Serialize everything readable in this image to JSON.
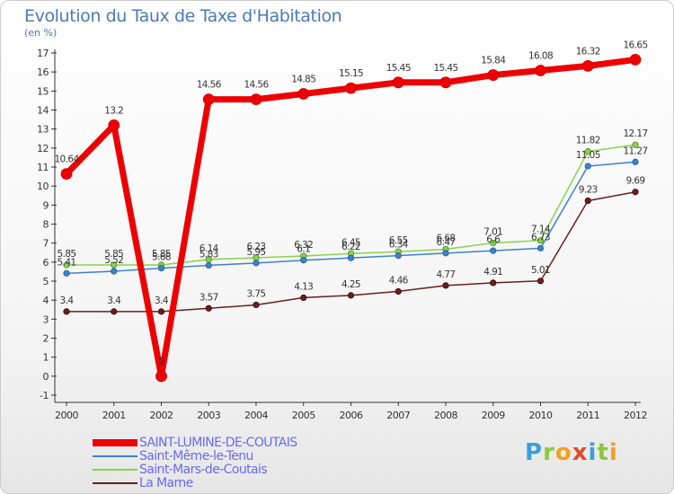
{
  "page": {
    "title": "Evolution du Taux de Taxe d'Habitation",
    "subtitle": "(en %)"
  },
  "chart_data": {
    "type": "line",
    "title": "Evolution du Taux de Taxe d'Habitation",
    "subtitle": "(en %)",
    "xlabel": "",
    "ylabel": "",
    "ylim": [
      -1,
      17
    ],
    "grid": false,
    "legend_placement": "bottom-left",
    "x": [
      "2000",
      "2001",
      "2002",
      "2003",
      "2004",
      "2005",
      "2006",
      "2007",
      "2008",
      "2009",
      "2010",
      "2011",
      "2012"
    ],
    "y_ticks": [
      "-1",
      "0",
      "1",
      "2",
      "3",
      "4",
      "5",
      "6",
      "7",
      "8",
      "9",
      "10",
      "11",
      "12",
      "13",
      "14",
      "15",
      "16",
      "17"
    ],
    "series": [
      {
        "name": "SAINT-LUMINE-DE-COUTAIS",
        "color": "#ee0000",
        "values": [
          10.64,
          13.2,
          0,
          14.56,
          14.56,
          14.85,
          15.15,
          15.45,
          15.45,
          15.84,
          16.08,
          16.32,
          16.65
        ],
        "labels": [
          "10.64",
          "13.2",
          "0",
          "14.56",
          "14.56",
          "14.85",
          "15.15",
          "15.45",
          "15.45",
          "15.84",
          "16.08",
          "16.32",
          "16.65"
        ]
      },
      {
        "name": "Saint-Même-le-Tenu",
        "color": "#3a82d0",
        "values": [
          5.41,
          5.52,
          5.68,
          5.83,
          5.95,
          6.1,
          6.22,
          6.34,
          6.47,
          6.6,
          6.73,
          11.05,
          11.27
        ],
        "labels": [
          "5.41",
          "5.52",
          "5.68",
          "5.83",
          "5.95",
          "6.1",
          "6.22",
          "6.34",
          "6.47",
          "6.6",
          "6.73",
          "11.05",
          "11.27"
        ]
      },
      {
        "name": "Saint-Mars-de-Coutais",
        "color": "#86d44a",
        "values": [
          5.85,
          5.85,
          5.85,
          6.14,
          6.23,
          6.32,
          6.45,
          6.55,
          6.68,
          7.01,
          7.14,
          11.82,
          12.17
        ],
        "labels": [
          "5.85",
          "5.85",
          "5.85",
          "6.14",
          "6.23",
          "6.32",
          "6.45",
          "6.55",
          "6.68",
          "7.01",
          "7.14",
          "11.82",
          "12.17"
        ]
      },
      {
        "name": "La Marne",
        "color": "#6b1e1e",
        "values": [
          3.4,
          3.4,
          3.4,
          3.57,
          3.75,
          4.13,
          4.25,
          4.46,
          4.77,
          4.91,
          5.01,
          9.23,
          9.69
        ],
        "labels": [
          "3.4",
          "3.4",
          "3.4",
          "3.57",
          "3.75",
          "4.13",
          "4.25",
          "4.46",
          "4.77",
          "4.91",
          "5.01",
          "9.23",
          "9.69"
        ]
      }
    ]
  },
  "logo": {
    "text": "Proxiti",
    "colors": [
      "#3aa0d8",
      "#8cc83c",
      "#f0a020",
      "#e04a2a",
      "#3aa0d8",
      "#8cc83c",
      "#f0a020"
    ]
  }
}
